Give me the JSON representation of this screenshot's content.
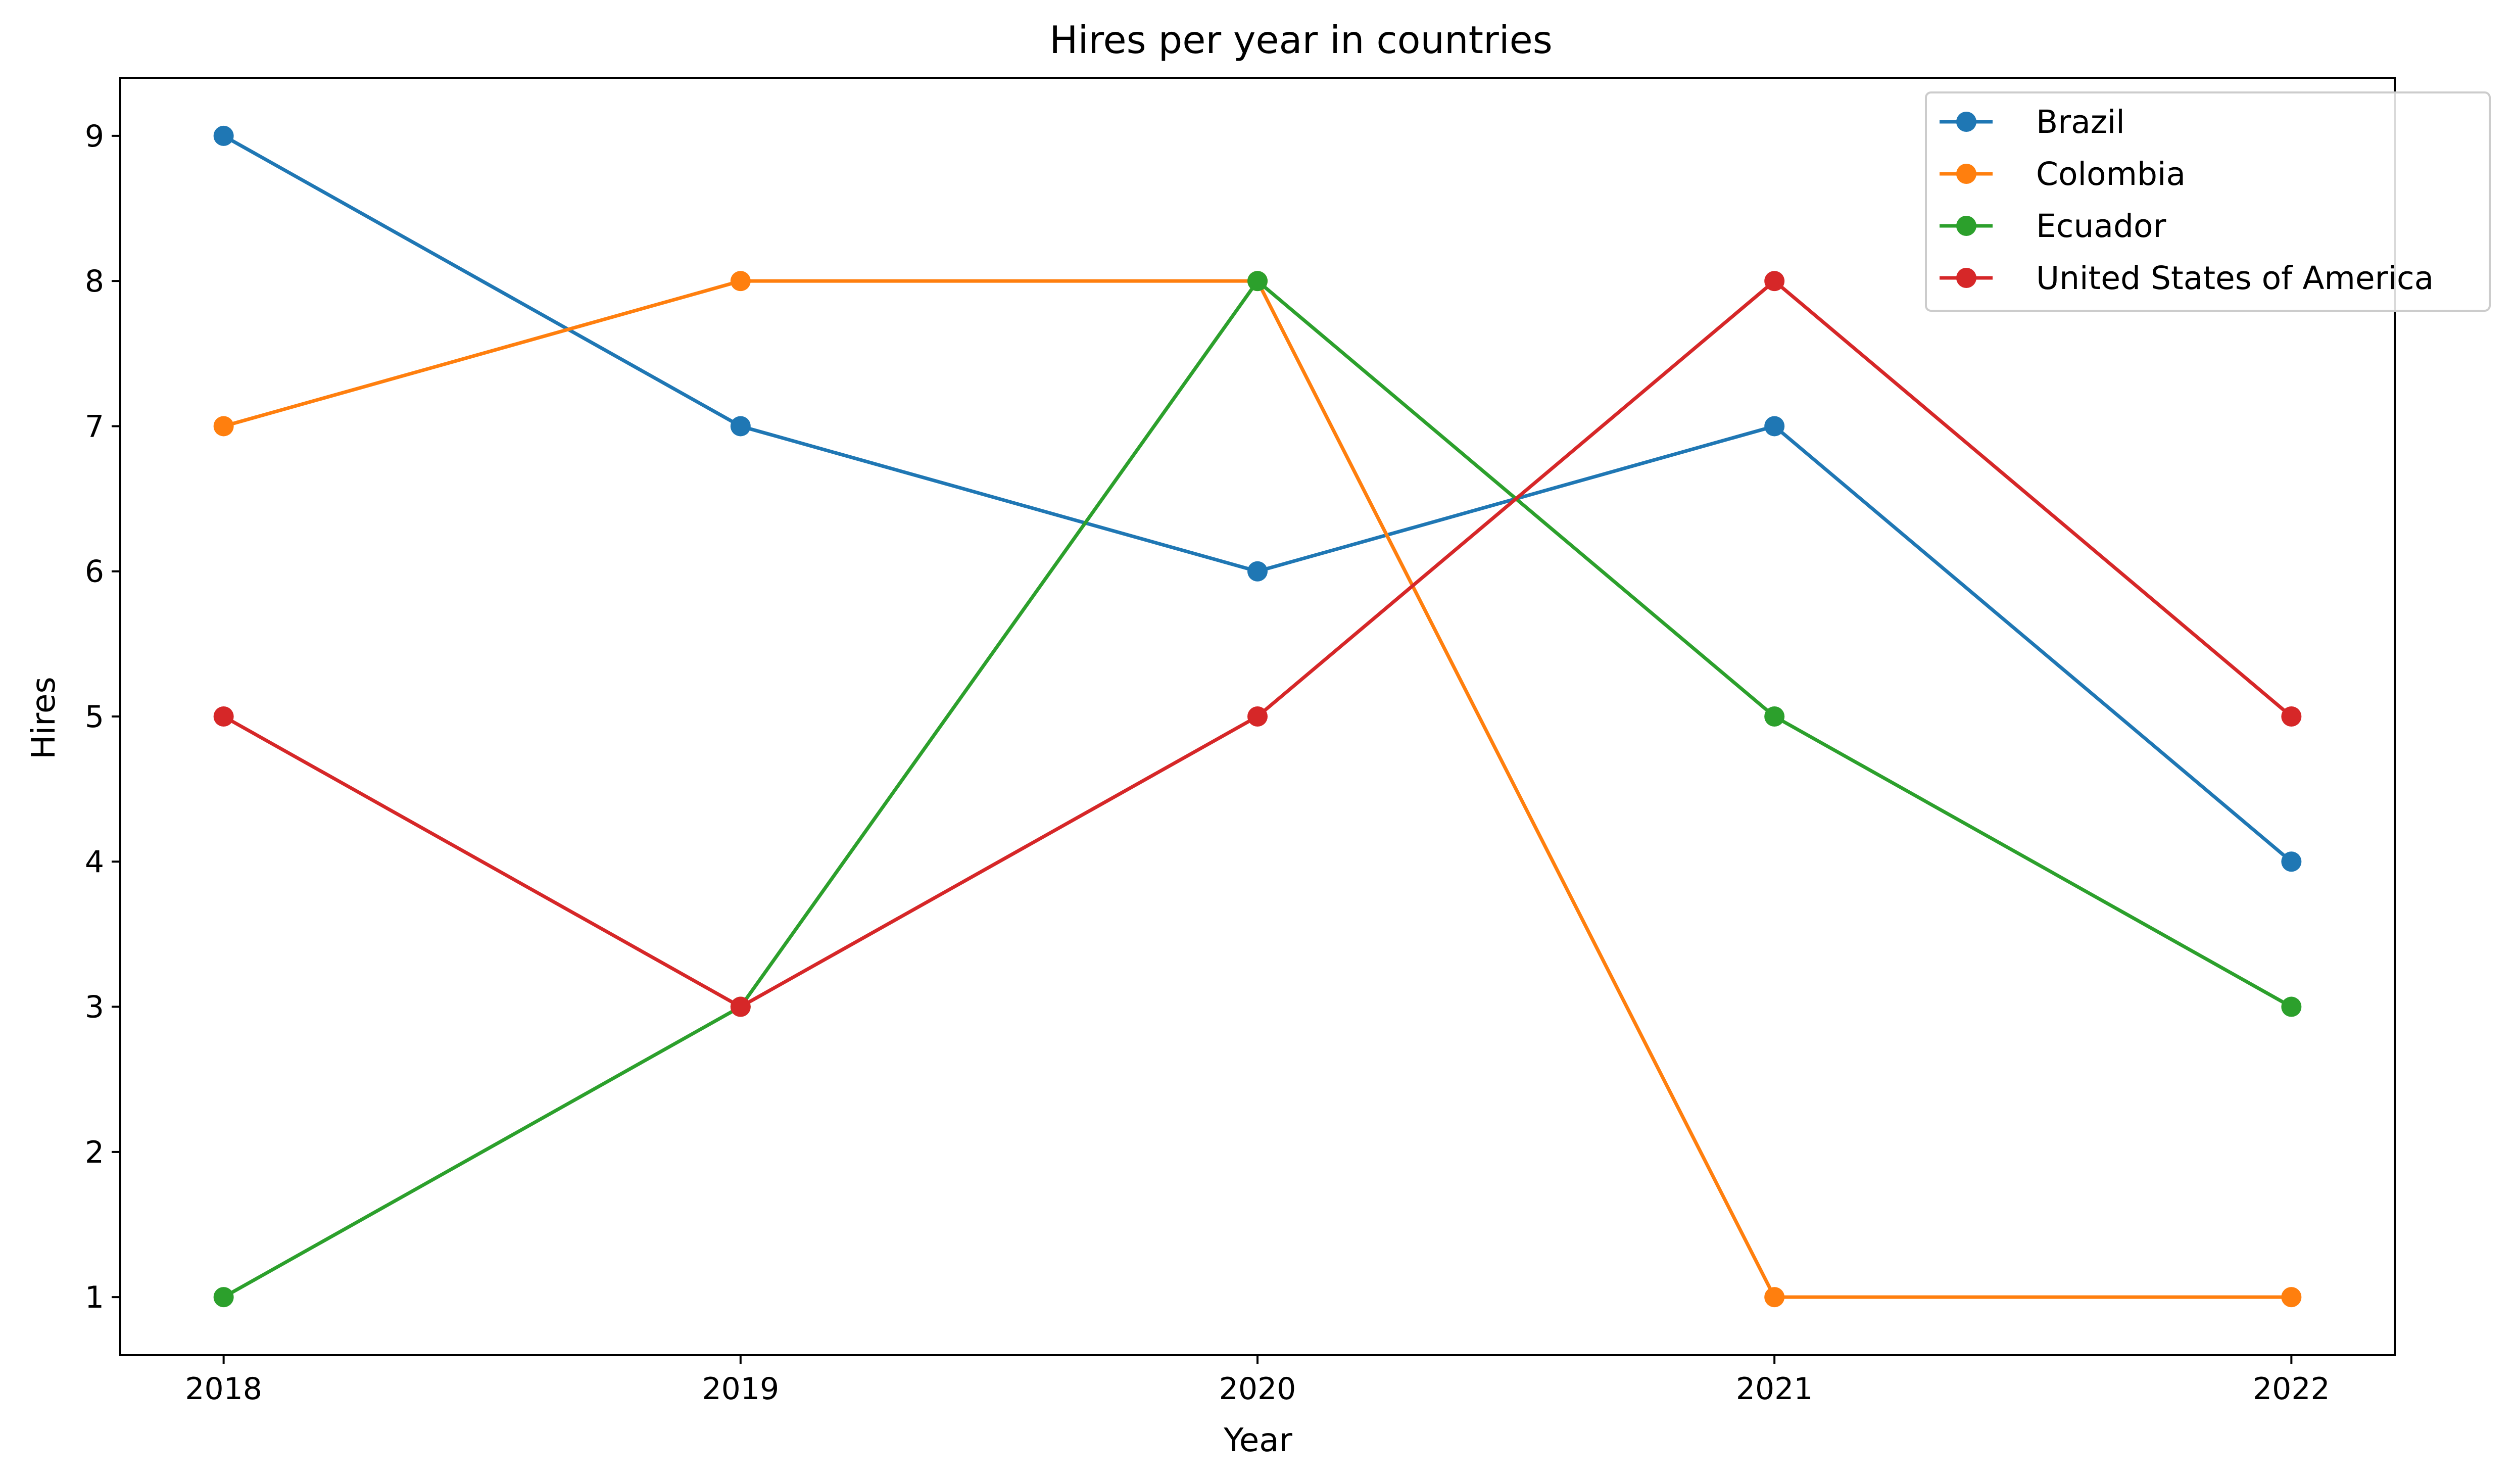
{
  "chart_data": {
    "type": "line",
    "title": "Hires per year in countries",
    "xlabel": "Year",
    "ylabel": "Hires",
    "x": [
      2018,
      2019,
      2020,
      2021,
      2022
    ],
    "x_tick_labels": [
      "2018",
      "2019",
      "2020",
      "2021",
      "2022"
    ],
    "y_ticks": [
      1,
      2,
      3,
      4,
      5,
      6,
      7,
      8,
      9
    ],
    "y_tick_labels": [
      "1",
      "2",
      "3",
      "4",
      "5",
      "6",
      "7",
      "8",
      "9"
    ],
    "xlim": [
      2017.8,
      2022.2
    ],
    "ylim": [
      0.6,
      9.4
    ],
    "grid": false,
    "markers": true,
    "legend_position": "top-right",
    "series": [
      {
        "name": "Brazil",
        "color": "#1f77b4",
        "values": [
          9,
          7,
          6,
          7,
          4
        ]
      },
      {
        "name": "Colombia",
        "color": "#ff7f0e",
        "values": [
          7,
          8,
          8,
          1,
          1
        ]
      },
      {
        "name": "Ecuador",
        "color": "#2ca02c",
        "values": [
          1,
          3,
          8,
          5,
          3
        ]
      },
      {
        "name": "United States of America",
        "color": "#d62728",
        "values": [
          5,
          3,
          5,
          8,
          5
        ]
      }
    ]
  }
}
